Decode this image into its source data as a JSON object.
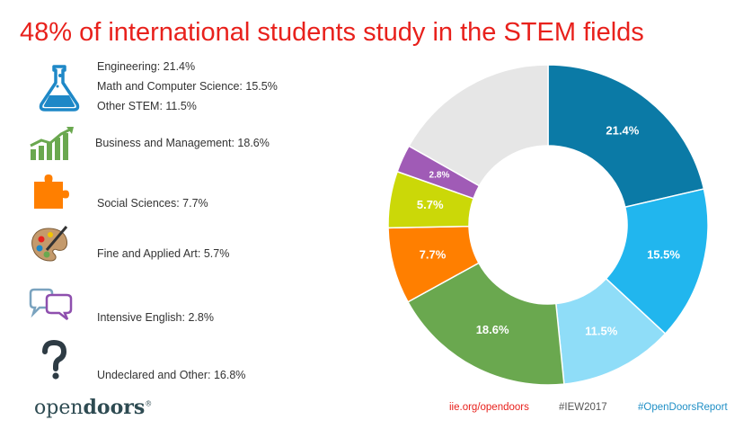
{
  "title": "48% of international students study in the STEM fields",
  "legend": [
    {
      "id": "engineering",
      "text": "Engineering: 21.4%",
      "icon": "flask-icon"
    },
    {
      "id": "math-cs",
      "text": "Math and Computer Science: 15.5%"
    },
    {
      "id": "other-stem",
      "text": "Other STEM: 11.5%"
    },
    {
      "id": "business",
      "text": "Business and Management: 18.6%",
      "icon": "bar-chart-growth-icon"
    },
    {
      "id": "social",
      "text": "Social Sciences: 7.7%",
      "icon": "puzzle-piece-icon"
    },
    {
      "id": "fine-art",
      "text": "Fine and Applied Art: 5.7%",
      "icon": "paint-palette-icon"
    },
    {
      "id": "english",
      "text": "Intensive English: 2.8%",
      "icon": "speech-bubbles-icon"
    },
    {
      "id": "undeclared",
      "text": "Undeclared and Other: 16.8%",
      "icon": "question-mark-icon"
    }
  ],
  "footer": {
    "logo_light": "open",
    "logo_bold": "doors",
    "logo_mark": "®",
    "link1": "iie.org/opendoors",
    "link2": "#IEW2017",
    "link3": "#OpenDoorsReport"
  },
  "colors": {
    "title": "#e8211c",
    "link1": "#e8211c",
    "link2": "#555555",
    "link3": "#1f8fc6"
  },
  "chart_data": {
    "type": "pie",
    "donut": true,
    "categories": [
      "Engineering",
      "Math and Computer Science",
      "Other STEM",
      "Business and Management",
      "Social Sciences",
      "Fine and Applied Art",
      "Intensive English",
      "Undeclared and Other"
    ],
    "values": [
      21.4,
      15.5,
      11.5,
      18.6,
      7.7,
      5.7,
      2.8,
      16.8
    ],
    "labels": [
      "21.4%",
      "15.5%",
      "11.5%",
      "18.6%",
      "7.7%",
      "5.7%",
      "2.8%",
      ""
    ],
    "colors": [
      "#0b7aa6",
      "#21b6ee",
      "#8fddf8",
      "#6aa84f",
      "#ff7f00",
      "#cbd808",
      "#a05bb6",
      "#e6e6e6"
    ]
  }
}
